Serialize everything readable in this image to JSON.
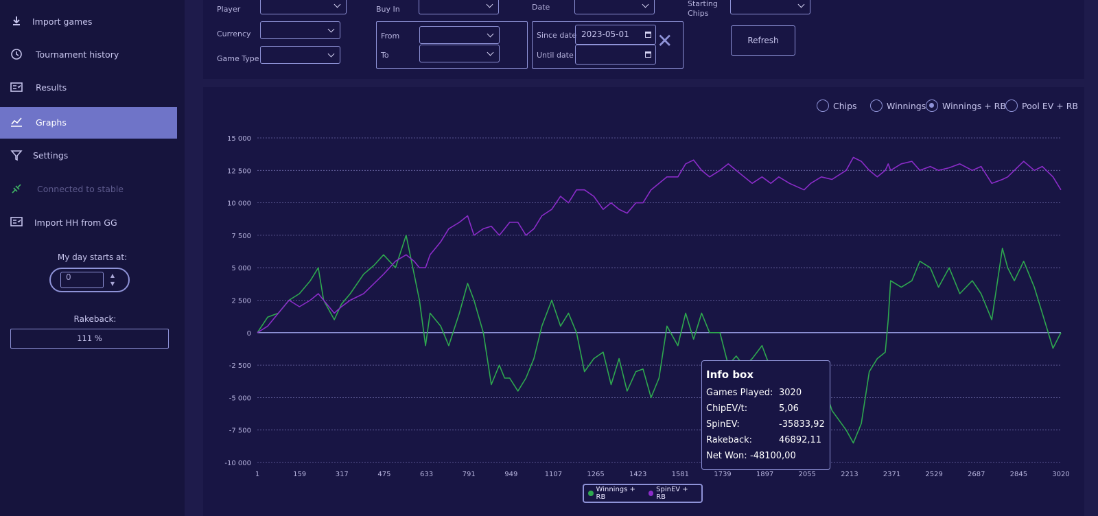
{
  "sidebar": {
    "items": [
      {
        "label": "Import games",
        "icon": "download-icon"
      },
      {
        "label": "Tournament history",
        "icon": "history-icon"
      },
      {
        "label": "Results",
        "icon": "results-icon"
      },
      {
        "label": "Graphs",
        "icon": "graph-icon",
        "active": true
      },
      {
        "label": "Settings",
        "icon": "filter-icon"
      },
      {
        "label": "Connected to stable",
        "icon": "plug-icon",
        "disabled": true
      },
      {
        "label": "Import HH from GG",
        "icon": "import-icon"
      }
    ],
    "day_starts_label": "My day starts at:",
    "day_starts_value": "0",
    "rakeback_label": "Rakeback:",
    "rakeback_value": "111 %"
  },
  "filters": {
    "player_label": "Player",
    "currency_label": "Currency",
    "game_type_label": "Game Type",
    "buyin_label": "Buy In",
    "from_label": "From",
    "to_label": "To",
    "date_label": "Date",
    "since_date_label": "Since date",
    "since_date_value": "2023-05-01",
    "until_date_label": "Until date",
    "until_date_value": "",
    "starting_chips_label": "Starting\nChips",
    "clear_symbol": "✕",
    "refresh_label": "Refresh"
  },
  "view_options": [
    {
      "label": "Chips",
      "checked": false
    },
    {
      "label": "Winnings",
      "checked": false
    },
    {
      "label": "Winnings + RB",
      "checked": true
    },
    {
      "label": "Pool EV + RB",
      "checked": false
    }
  ],
  "chart_data": {
    "type": "line",
    "ylim": [
      -10000,
      15000
    ],
    "xlim": [
      1,
      3020
    ],
    "yticks": [
      15000,
      12500,
      10000,
      7500,
      5000,
      2500,
      0,
      -2500,
      -5000,
      -7500,
      -10000
    ],
    "ytick_labels": [
      "15 000",
      "12 500",
      "10 000",
      "7 500",
      "5 000",
      "2 500",
      "0",
      "-2 500",
      "-5 000",
      "-7 500",
      "-10 000"
    ],
    "xtick_labels": [
      "1",
      "159",
      "317",
      "475",
      "633",
      "791",
      "949",
      "1107",
      "1265",
      "1423",
      "1581",
      "1739",
      "1897",
      "2055",
      "2213",
      "2371",
      "2529",
      "2687",
      "2845",
      "3020"
    ],
    "grid": true,
    "series": [
      {
        "name": "Winnings + RB",
        "color": "#2ea84f",
        "x": [
          1,
          40,
          80,
          120,
          159,
          200,
          230,
          250,
          290,
          317,
          350,
          400,
          440,
          475,
          520,
          560,
          590,
          610,
          633,
          650,
          690,
          720,
          760,
          791,
          815,
          850,
          880,
          910,
          930,
          949,
          980,
          1010,
          1040,
          1070,
          1107,
          1140,
          1170,
          1200,
          1230,
          1265,
          1300,
          1330,
          1360,
          1390,
          1423,
          1450,
          1480,
          1510,
          1540,
          1581,
          1610,
          1640,
          1670,
          1700,
          1739,
          1770,
          1800,
          1830,
          1860,
          1897,
          1930,
          1960,
          2000,
          2055,
          2080,
          2120,
          2160,
          2213,
          2240,
          2270,
          2300,
          2330,
          2360,
          2371,
          2380,
          2420,
          2460,
          2490,
          2529,
          2560,
          2600,
          2640,
          2687,
          2720,
          2760,
          2800,
          2820,
          2845,
          2880,
          2920,
          2950,
          2990,
          3020
        ],
        "values": [
          0,
          1200,
          1500,
          2500,
          3000,
          4000,
          5000,
          2500,
          1000,
          2200,
          3000,
          4500,
          5200,
          6000,
          5000,
          7500,
          4500,
          2500,
          -1000,
          1500,
          500,
          -1000,
          1500,
          3800,
          2500,
          0,
          -4000,
          -2500,
          -3500,
          -3500,
          -4500,
          -3500,
          -2000,
          500,
          2500,
          500,
          1500,
          0,
          -3000,
          -2000,
          -1500,
          -4000,
          -2000,
          -4500,
          -3000,
          -2800,
          -5000,
          -3500,
          500,
          -1000,
          1500,
          -500,
          1500,
          0,
          0,
          -2500,
          -1800,
          -2600,
          -2000,
          -1000,
          -2800,
          -3000,
          -3500,
          -3200,
          -2500,
          -3500,
          -6000,
          -7500,
          -8500,
          -7000,
          -3000,
          -2000,
          -1500,
          1000,
          4000,
          3500,
          4000,
          5500,
          5000,
          3500,
          5000,
          3000,
          4000,
          3000,
          1000,
          6500,
          5000,
          4000,
          5500,
          3500,
          1500,
          -1200,
          0
        ]
      },
      {
        "name": "SpinEV + RB",
        "color": "#8b2cc9",
        "x": [
          1,
          40,
          80,
          120,
          159,
          200,
          230,
          250,
          290,
          317,
          350,
          400,
          440,
          475,
          520,
          560,
          590,
          610,
          633,
          650,
          690,
          720,
          760,
          791,
          815,
          850,
          880,
          910,
          930,
          949,
          980,
          1010,
          1040,
          1070,
          1107,
          1140,
          1170,
          1200,
          1230,
          1265,
          1300,
          1330,
          1360,
          1390,
          1423,
          1450,
          1480,
          1510,
          1540,
          1581,
          1610,
          1640,
          1670,
          1700,
          1739,
          1770,
          1800,
          1830,
          1860,
          1897,
          1930,
          1960,
          2000,
          2055,
          2080,
          2120,
          2160,
          2213,
          2240,
          2270,
          2300,
          2330,
          2360,
          2371,
          2380,
          2420,
          2460,
          2490,
          2529,
          2560,
          2600,
          2640,
          2687,
          2720,
          2760,
          2800,
          2820,
          2845,
          2880,
          2920,
          2950,
          2990,
          3020
        ],
        "values": [
          0,
          500,
          1500,
          2500,
          2000,
          2500,
          3000,
          2500,
          1500,
          2000,
          2500,
          3000,
          3800,
          4500,
          5500,
          6000,
          5500,
          5000,
          5000,
          6000,
          7000,
          8000,
          8500,
          9000,
          7500,
          8000,
          8200,
          7500,
          8000,
          8500,
          8500,
          7500,
          8000,
          9000,
          9500,
          10500,
          10000,
          11000,
          11000,
          10500,
          9500,
          10000,
          9500,
          9200,
          10000,
          10000,
          11000,
          11500,
          12000,
          12000,
          13000,
          13300,
          12500,
          12000,
          12500,
          13000,
          12500,
          12000,
          11500,
          12000,
          11500,
          12000,
          11500,
          11000,
          11500,
          12000,
          11800,
          12500,
          13500,
          13200,
          12500,
          12000,
          12500,
          13000,
          12500,
          13000,
          13200,
          12500,
          12800,
          12500,
          12700,
          13000,
          12500,
          12800,
          11500,
          11800,
          12000,
          12500,
          13200,
          12500,
          12800,
          12000,
          11000
        ]
      }
    ],
    "legend_position": "bottom-center"
  },
  "info_box": {
    "title": "Info box",
    "rows": [
      {
        "key": "Games Played:",
        "value": "3020"
      },
      {
        "key": "ChipEV/t:",
        "value": "5,06"
      },
      {
        "key": "SpinEV:",
        "value": "-35833,92"
      },
      {
        "key": "Rakeback:",
        "value": "46892,11"
      },
      {
        "key": "Net Won:",
        "value": "-48100,00"
      }
    ]
  }
}
